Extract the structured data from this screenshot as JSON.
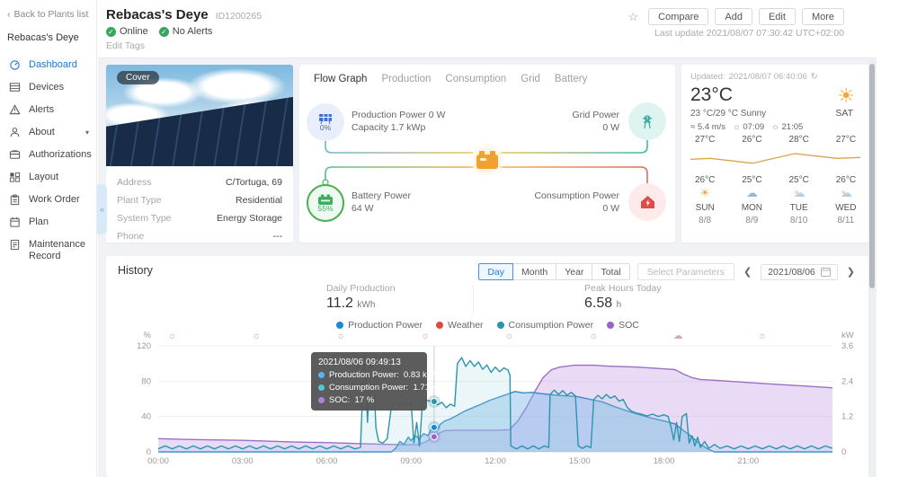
{
  "sidebar": {
    "back_label": "Back to Plants list",
    "plant_name": "Rebacas's Deye",
    "items": [
      {
        "label": "Dashboard",
        "icon": "dashboard-icon",
        "active": true
      },
      {
        "label": "Devices",
        "icon": "devices-icon"
      },
      {
        "label": "Alerts",
        "icon": "alerts-icon"
      },
      {
        "label": "About",
        "icon": "about-icon",
        "caret": true
      },
      {
        "label": "Authorizations",
        "icon": "authorizations-icon"
      },
      {
        "label": "Layout",
        "icon": "layout-icon"
      },
      {
        "label": "Work Order",
        "icon": "work-order-icon"
      },
      {
        "label": "Plan",
        "icon": "plan-icon"
      },
      {
        "label": "Maintenance Record",
        "icon": "maintenance-record-icon"
      }
    ]
  },
  "header": {
    "title": "Rebacas's Deye",
    "plant_id": "ID1200265",
    "status_online": "Online",
    "status_alerts": "No Alerts",
    "edit_tags": "Edit Tags",
    "buttons": [
      "Compare",
      "Add",
      "Edit",
      "More"
    ],
    "last_update": "Last update 2021/08/07 07:30:42 UTC+02:00"
  },
  "cover_card": {
    "badge": "Cover",
    "info_rows": [
      {
        "label": "Address",
        "value": "C/Tortuga, 69"
      },
      {
        "label": "Plant Type",
        "value": "Residential"
      },
      {
        "label": "System Type",
        "value": "Energy Storage"
      },
      {
        "label": "Phone",
        "value": "---"
      }
    ]
  },
  "flow_card": {
    "tabs": [
      "Flow Graph",
      "Production",
      "Consumption",
      "Grid",
      "Battery"
    ],
    "active_tab": "Flow Graph",
    "production": {
      "line1": "Production Power 0 W",
      "line2": "Capacity 1.7 kWp",
      "percent": "0%"
    },
    "grid": {
      "line1": "Grid Power",
      "line2": "0 W"
    },
    "battery": {
      "line1": "Battery Power",
      "line2": "64 W",
      "percent": "55%"
    },
    "consumption": {
      "line1": "Consumption Power",
      "line2": "0 W"
    }
  },
  "weather_card": {
    "updated_label": "Updated:",
    "updated_time": "2021/08/07 06:40:06",
    "current_temp": "23°C",
    "range_condition": "23 °C/29 °C Sunny",
    "wind": "5.4 m/s",
    "sunrise": "07:09",
    "sunset": "21:05",
    "today_day": "SAT",
    "forecast": {
      "highs": [
        "27°C",
        "26°C",
        "28°C",
        "27°C"
      ],
      "lows": [
        "26°C",
        "25°C",
        "25°C",
        "26°C"
      ],
      "icons": [
        "sun",
        "rain",
        "partly-cloudy",
        "partly-cloudy"
      ],
      "days": [
        "SUN",
        "MON",
        "TUE",
        "WED"
      ],
      "dates": [
        "8/8",
        "8/9",
        "8/10",
        "8/11"
      ],
      "high_values": [
        27,
        26,
        28,
        27
      ],
      "low_values": [
        26,
        25,
        25,
        26
      ],
      "high_line_color": "#d9a54e",
      "low_line_color": "#8fc3dd"
    }
  },
  "history": {
    "title": "History",
    "stats": [
      {
        "label": "Daily Production",
        "value": "11.2",
        "unit": "kWh"
      },
      {
        "label": "Peak Hours Today",
        "value": "6.58",
        "unit": "h"
      }
    ],
    "period_buttons": [
      "Day",
      "Month",
      "Year",
      "Total"
    ],
    "active_period": "Day",
    "select_parameters_label": "Select Parameters",
    "date_value": "2021/08/06",
    "tooltip": {
      "time": "2021/08/06 09:49:13",
      "rows": [
        {
          "label": "Production Power",
          "value": "0.83 kW",
          "color": "#57b6f0"
        },
        {
          "label": "Consumption Power",
          "value": "1.71 kW",
          "color": "#53c6d8"
        },
        {
          "label": "SOC",
          "value": "17 %",
          "color": "#b07fe0"
        }
      ],
      "hour": 9.82,
      "marker_values": {
        "production_kw": 0.83,
        "consumption_kw": 1.71,
        "soc_pct": 17
      }
    }
  },
  "chart_data": {
    "type": "line",
    "title": "History (Day view, 2021/08/06)",
    "x_axis": {
      "unit": "hours",
      "range": [
        0,
        24
      ],
      "tick_labels": [
        "00:00",
        "03:00",
        "06:00",
        "09:00",
        "12:00",
        "15:00",
        "18:00",
        "21:00"
      ],
      "tick_hours": [
        0,
        3,
        6,
        9,
        12,
        15,
        18,
        21
      ]
    },
    "y_left": {
      "label": "%",
      "range": [
        0,
        120
      ],
      "ticks": [
        0,
        40,
        80,
        120
      ]
    },
    "y_right": {
      "label": "kW",
      "range": [
        0,
        3.6
      ],
      "ticks": [
        0,
        1.2,
        2.4,
        3.6
      ]
    },
    "grid": true,
    "legend_position": "top-center",
    "legend": [
      {
        "label": "Production Power",
        "color": "#1989d1"
      },
      {
        "label": "Weather",
        "color": "#e0493f"
      },
      {
        "label": "Consumption Power",
        "color": "#2e93ad"
      },
      {
        "label": "SOC",
        "color": "#9a63c9"
      }
    ],
    "weather_icon_row": {
      "hours": [
        0.5,
        3.5,
        6.5,
        9.5,
        12.5,
        15.5,
        18.5,
        21.5
      ],
      "types": [
        "sun",
        "sun",
        "sun",
        "sun",
        "sun",
        "sun",
        "cloud",
        "sun"
      ]
    },
    "series": [
      {
        "name": "SOC",
        "axis": "left",
        "unit": "%",
        "color": "#9b6fc4",
        "fill": "rgba(176,127,224,0.28)",
        "points": [
          [
            0,
            15
          ],
          [
            1,
            14
          ],
          [
            2,
            13.5
          ],
          [
            3,
            13
          ],
          [
            4,
            12
          ],
          [
            5,
            11
          ],
          [
            6,
            10.5
          ],
          [
            7,
            9.5
          ],
          [
            8,
            8.5
          ],
          [
            8.8,
            8
          ],
          [
            9.2,
            8
          ],
          [
            9.5,
            11
          ],
          [
            9.82,
            17
          ],
          [
            10,
            21
          ],
          [
            10.2,
            24
          ],
          [
            10.5,
            24.5
          ],
          [
            11,
            24.5
          ],
          [
            11.5,
            24.5
          ],
          [
            12,
            24.5
          ],
          [
            12.5,
            25
          ],
          [
            12.8,
            35
          ],
          [
            13.1,
            50
          ],
          [
            13.4,
            68
          ],
          [
            13.7,
            84
          ],
          [
            14,
            93
          ],
          [
            14.3,
            96
          ],
          [
            14.8,
            98
          ],
          [
            15.5,
            98
          ],
          [
            16,
            97
          ],
          [
            16.5,
            96.5
          ],
          [
            17,
            96
          ],
          [
            17.5,
            95
          ],
          [
            18,
            94
          ],
          [
            18.4,
            93
          ],
          [
            18.7,
            88
          ],
          [
            19,
            84
          ],
          [
            19.3,
            82
          ],
          [
            19.8,
            81
          ],
          [
            20.5,
            79.5
          ],
          [
            21,
            78.5
          ],
          [
            22,
            76.5
          ],
          [
            23,
            74.5
          ],
          [
            24,
            72.5
          ]
        ]
      },
      {
        "name": "Production Power",
        "axis": "right",
        "unit": "kW",
        "color": "#3a87c2",
        "fill": "rgba(125,184,232,0.45)",
        "points": [
          [
            0,
            0
          ],
          [
            8.3,
            0
          ],
          [
            8.45,
            0.12
          ],
          [
            8.6,
            0.35
          ],
          [
            8.75,
            0.25
          ],
          [
            8.9,
            0.5
          ],
          [
            9,
            0.38
          ],
          [
            9.15,
            0.55
          ],
          [
            9.3,
            0.45
          ],
          [
            9.45,
            0.62
          ],
          [
            9.6,
            0.55
          ],
          [
            9.7,
            0.75
          ],
          [
            9.82,
            0.83
          ],
          [
            9.95,
            0.78
          ],
          [
            10.05,
            0.95
          ],
          [
            10.2,
            1.05
          ],
          [
            10.4,
            1.12
          ],
          [
            10.6,
            1.22
          ],
          [
            10.9,
            1.38
          ],
          [
            11.2,
            1.5
          ],
          [
            11.5,
            1.62
          ],
          [
            11.8,
            1.75
          ],
          [
            12.1,
            1.85
          ],
          [
            12.4,
            1.95
          ],
          [
            12.7,
            2.05
          ],
          [
            13,
            2
          ],
          [
            13.3,
            2.02
          ],
          [
            13.6,
            1.98
          ],
          [
            13.9,
            1.95
          ],
          [
            14.2,
            1.92
          ],
          [
            14.5,
            1.9
          ],
          [
            14.9,
            1.88
          ],
          [
            15.3,
            1.8
          ],
          [
            15.8,
            1.7
          ],
          [
            16.2,
            1.55
          ],
          [
            16.6,
            1.42
          ],
          [
            17,
            1.3
          ],
          [
            17.5,
            1.16
          ],
          [
            18,
            1.05
          ],
          [
            18.4,
            0.95
          ],
          [
            18.7,
            0.72
          ],
          [
            19,
            0.5
          ],
          [
            19.3,
            0.25
          ],
          [
            19.6,
            0.08
          ],
          [
            19.8,
            0
          ],
          [
            24,
            0
          ]
        ]
      },
      {
        "name": "Consumption Power",
        "axis": "right",
        "unit": "kW",
        "color": "#2e93ad",
        "fill": "rgba(159,212,223,0.22)",
        "points": [
          [
            0,
            0.1
          ],
          [
            0.25,
            0.2
          ],
          [
            0.5,
            0.1
          ],
          [
            0.75,
            0.2
          ],
          [
            1,
            0.1
          ],
          [
            1.25,
            0.2
          ],
          [
            1.5,
            0.1
          ],
          [
            1.75,
            0.2
          ],
          [
            2,
            0.1
          ],
          [
            2.25,
            0.2
          ],
          [
            2.5,
            0.1
          ],
          [
            2.75,
            0.2
          ],
          [
            3,
            0.1
          ],
          [
            3.25,
            0.2
          ],
          [
            3.5,
            0.1
          ],
          [
            3.75,
            0.2
          ],
          [
            4,
            0.1
          ],
          [
            4.25,
            0.2
          ],
          [
            4.5,
            0.1
          ],
          [
            4.75,
            0.2
          ],
          [
            5,
            0.1
          ],
          [
            5.25,
            0.2
          ],
          [
            5.5,
            0.1
          ],
          [
            5.75,
            0.2
          ],
          [
            6,
            0.1
          ],
          [
            6.25,
            0.2
          ],
          [
            6.5,
            0.1
          ],
          [
            6.75,
            0.2
          ],
          [
            7,
            0.1
          ],
          [
            7.2,
            0.15
          ],
          [
            7.3,
            2.6
          ],
          [
            7.35,
            3.25
          ],
          [
            7.45,
            1
          ],
          [
            7.55,
            2.9
          ],
          [
            7.65,
            3.05
          ],
          [
            7.75,
            0.8
          ],
          [
            7.85,
            0.35
          ],
          [
            8,
            0.3
          ],
          [
            8.15,
            0.45
          ],
          [
            8.3,
            1.55
          ],
          [
            8.45,
            1.7
          ],
          [
            8.6,
            1.55
          ],
          [
            8.75,
            1.7
          ],
          [
            8.9,
            1.6
          ],
          [
            9,
            1.7
          ],
          [
            9.1,
            0.3
          ],
          [
            9.2,
            1
          ],
          [
            9.3,
            0.2
          ],
          [
            9.4,
            1.6
          ],
          [
            9.55,
            1.75
          ],
          [
            9.7,
            1.72
          ],
          [
            9.82,
            1.71
          ],
          [
            9.95,
            1.6
          ],
          [
            10.1,
            1.68
          ],
          [
            10.25,
            1.5
          ],
          [
            10.4,
            1.62
          ],
          [
            10.55,
            1.55
          ],
          [
            10.65,
            3
          ],
          [
            10.8,
            3.2
          ],
          [
            10.95,
            2.9
          ],
          [
            11.1,
            3.1
          ],
          [
            11.25,
            2.9
          ],
          [
            11.4,
            3.05
          ],
          [
            11.55,
            2.8
          ],
          [
            11.7,
            2.95
          ],
          [
            11.85,
            2.7
          ],
          [
            12,
            2.88
          ],
          [
            12.15,
            2.72
          ],
          [
            12.3,
            2.85
          ],
          [
            12.45,
            2.78
          ],
          [
            12.52,
            2.6
          ],
          [
            12.55,
            0.2
          ],
          [
            12.75,
            0.1
          ],
          [
            12.95,
            0.2
          ],
          [
            13.15,
            0.1
          ],
          [
            13.35,
            0.2
          ],
          [
            13.55,
            0.1
          ],
          [
            13.75,
            0.2
          ],
          [
            13.9,
            0.15
          ],
          [
            13.95,
            1.95
          ],
          [
            14.1,
            2.1
          ],
          [
            14.25,
            1.95
          ],
          [
            14.4,
            2.08
          ],
          [
            14.55,
            1.92
          ],
          [
            14.7,
            2.02
          ],
          [
            14.85,
            1.9
          ],
          [
            14.95,
            0.2
          ],
          [
            15.1,
            0.12
          ],
          [
            15.25,
            0.2
          ],
          [
            15.4,
            0.14
          ],
          [
            15.5,
            1.78
          ],
          [
            15.65,
            1.92
          ],
          [
            15.8,
            1.8
          ],
          [
            15.95,
            1.95
          ],
          [
            16.1,
            1.82
          ],
          [
            16.25,
            1.9
          ],
          [
            16.4,
            1.72
          ],
          [
            16.55,
            1.78
          ],
          [
            16.7,
            1.5
          ],
          [
            16.85,
            1.38
          ],
          [
            17,
            1.32
          ],
          [
            17.2,
            1.28
          ],
          [
            17.4,
            1.22
          ],
          [
            17.6,
            1.28
          ],
          [
            17.8,
            1.2
          ],
          [
            18,
            1.26
          ],
          [
            18.15,
            1.2
          ],
          [
            18.25,
            0.85
          ],
          [
            18.35,
            0.4
          ],
          [
            18.45,
            1
          ],
          [
            18.55,
            0.35
          ],
          [
            18.65,
            1.2
          ],
          [
            18.8,
            1.3
          ],
          [
            18.9,
            0.3
          ],
          [
            19,
            0.55
          ],
          [
            19.1,
            0.2
          ],
          [
            19.2,
            0.5
          ],
          [
            19.3,
            0.15
          ],
          [
            19.45,
            0.35
          ],
          [
            19.6,
            0.12
          ],
          [
            19.8,
            0.25
          ],
          [
            20,
            0.12
          ],
          [
            20.25,
            0.2
          ],
          [
            20.5,
            0.1
          ],
          [
            20.75,
            0.2
          ],
          [
            21,
            0.1
          ],
          [
            21.25,
            0.2
          ],
          [
            21.5,
            0.1
          ],
          [
            21.75,
            0.2
          ],
          [
            22,
            0.1
          ],
          [
            22.25,
            0.2
          ],
          [
            22.5,
            0.1
          ],
          [
            22.75,
            0.2
          ],
          [
            23,
            0.1
          ],
          [
            23.25,
            0.2
          ],
          [
            23.5,
            0.1
          ],
          [
            23.75,
            0.2
          ],
          [
            24,
            0.12
          ]
        ]
      },
      {
        "name": "Weather",
        "axis": "none",
        "color": "#e0493f",
        "points": []
      }
    ]
  },
  "misc": {
    "collapse_glyph": "«",
    "sun_glyph": "☀",
    "cloud_glyph": "☁",
    "star_glyph": "☆",
    "refresh_glyph": "↻",
    "wind_glyph": "≈"
  }
}
